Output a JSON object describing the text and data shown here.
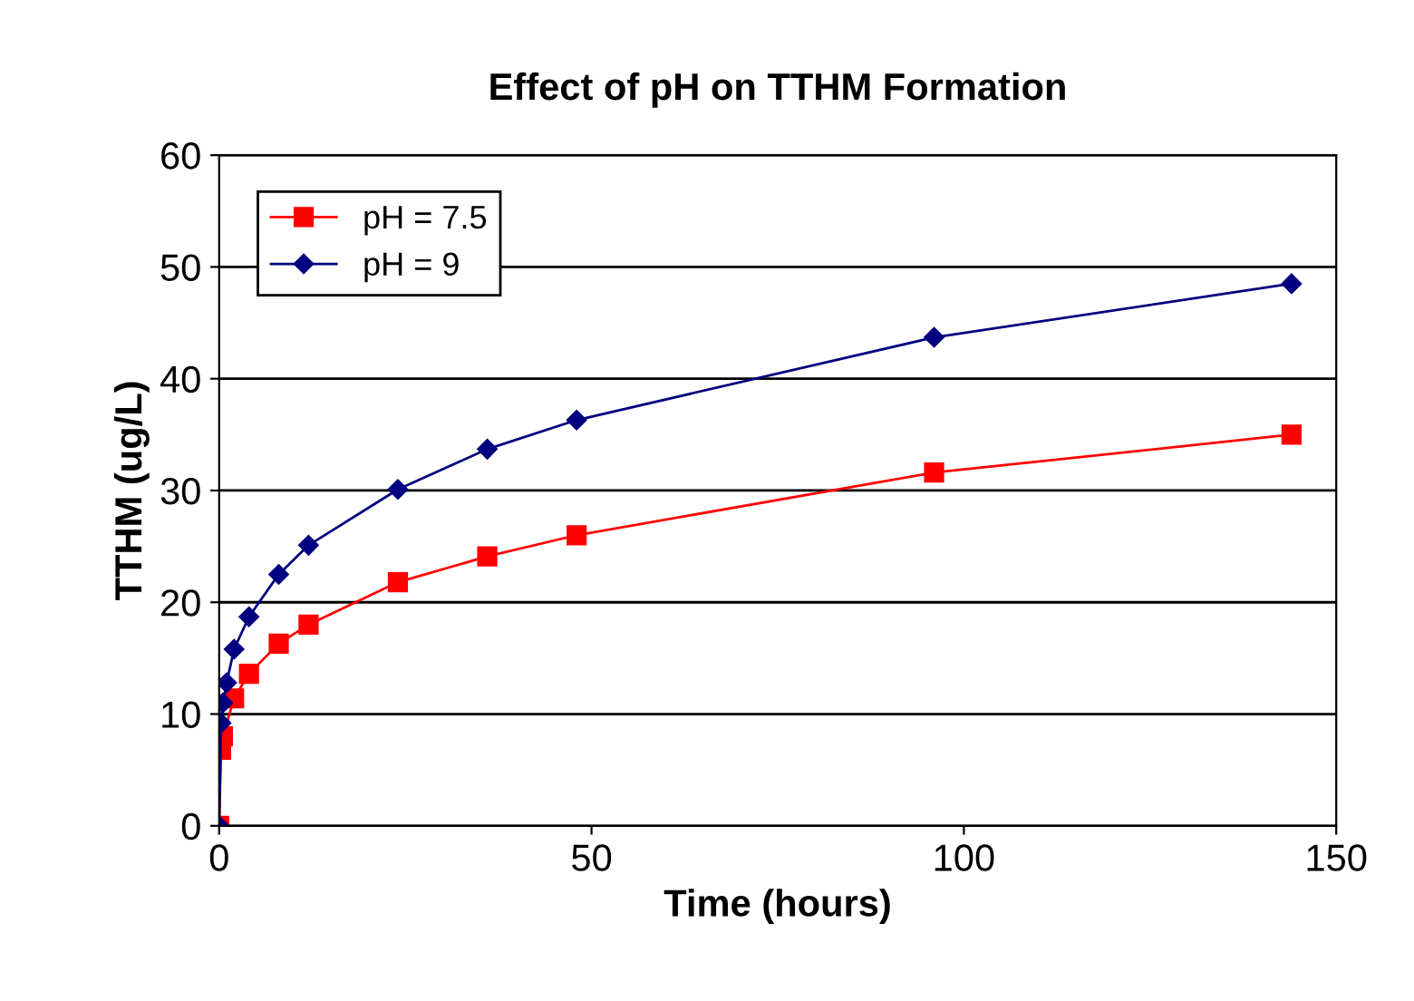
{
  "chart_data": {
    "type": "line",
    "title": "Effect of pH on TTHM Formation",
    "xlabel": "Time (hours)",
    "ylabel": "TTHM (ug/L)",
    "series": [
      {
        "name": "pH = 7.5",
        "color": "#ff0000",
        "marker": "square",
        "x": [
          0,
          0.25,
          0.5,
          2,
          4,
          8,
          12,
          24,
          36,
          48,
          96,
          144
        ],
        "values": [
          0,
          6.8,
          8.0,
          11.4,
          13.6,
          16.3,
          18.0,
          21.8,
          24.1,
          26.0,
          31.6,
          35.0
        ]
      },
      {
        "name": "pH = 9",
        "color": "#000080",
        "marker": "diamond",
        "x": [
          0,
          0.25,
          0.5,
          1,
          2,
          4,
          8,
          12,
          24,
          36,
          48,
          96,
          144
        ],
        "values": [
          0,
          9.2,
          11.0,
          12.8,
          15.8,
          18.7,
          22.5,
          25.1,
          30.1,
          33.7,
          36.3,
          43.7,
          48.5
        ]
      }
    ],
    "xlim": [
      0,
      150
    ],
    "xticks": [
      0,
      50,
      100,
      150
    ],
    "ylim": [
      0,
      60
    ],
    "yticks": [
      0,
      10,
      20,
      30,
      40,
      50,
      60
    ],
    "grid": "y",
    "legend": "top left",
    "line_style": "solid"
  }
}
